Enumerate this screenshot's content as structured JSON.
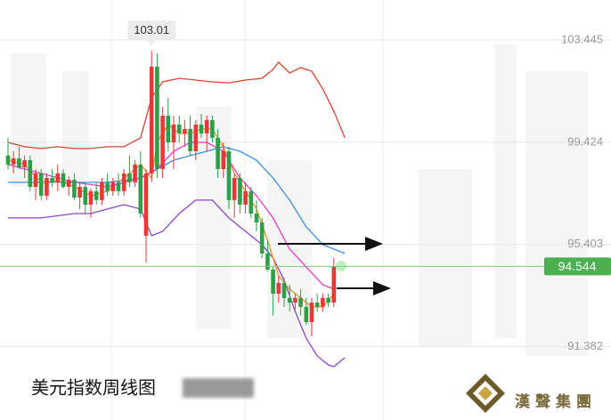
{
  "chart_data": {
    "type": "candlestick",
    "title": "美元指数周线图",
    "ylim": [
      88.5,
      105.02
    ],
    "yticks": [
      91.382,
      95.403,
      99.424,
      103.445
    ],
    "grid": true,
    "up_color": "#e53935",
    "down_color": "#2e9e48",
    "open": [
      98.9,
      98.55,
      98.79,
      98.44,
      98.72,
      97.67,
      98.2,
      97.32,
      98.02,
      97.85,
      98.2,
      97.67,
      97.95,
      97.25,
      97.67,
      96.97,
      97.5,
      97.15,
      97.85,
      97.5,
      97.85,
      97.5,
      98.2,
      97.85,
      98.55,
      95.75,
      98.2,
      102.4,
      98.37,
      100.47,
      99.42,
      100.12,
      99.77,
      99.95,
      99.07,
      100.12,
      99.77,
      100.3,
      99.6,
      98.37,
      99.07,
      97.15,
      98.02,
      96.97,
      97.5,
      96.62,
      96.27,
      95.05,
      94.42,
      93.47,
      93.89,
      93.3,
      93.12,
      93.3,
      92.95,
      92.35,
      93.12,
      92.95,
      93.3,
      93.12
    ],
    "high": [
      99.6,
      99.07,
      99.25,
      98.9,
      98.9,
      98.37,
      98.37,
      98.2,
      98.37,
      98.55,
      98.37,
      98.09,
      98.2,
      97.85,
      97.85,
      97.6,
      97.85,
      98.02,
      98.2,
      98.02,
      98.2,
      98.37,
      98.9,
      98.72,
      99.07,
      98.37,
      103.01,
      102.92,
      100.82,
      101.17,
      100.47,
      100.47,
      100.3,
      100.47,
      100.3,
      100.54,
      100.47,
      100.47,
      99.95,
      99.42,
      99.25,
      98.2,
      98.2,
      97.85,
      97.67,
      97.15,
      96.45,
      95.57,
      94.52,
      94.17,
      94.1,
      93.82,
      93.47,
      93.65,
      93.3,
      93.3,
      93.47,
      93.47,
      93.47,
      94.87
    ],
    "low": [
      98.37,
      98.2,
      98.37,
      98.02,
      97.5,
      97.15,
      97.15,
      97.15,
      97.67,
      97.5,
      97.6,
      97.32,
      97.15,
      96.8,
      96.62,
      96.45,
      96.97,
      96.97,
      97.32,
      97.32,
      97.32,
      97.32,
      97.67,
      97.67,
      96.45,
      94.7,
      97.85,
      98.02,
      98.02,
      99.07,
      98.37,
      99.42,
      99.25,
      98.9,
      98.72,
      99.6,
      99.07,
      99.42,
      98.02,
      98.02,
      96.8,
      96.45,
      96.62,
      96.62,
      96.45,
      95.92,
      94.87,
      94.35,
      92.6,
      93.12,
      92.95,
      92.77,
      92.84,
      92.6,
      92.25,
      91.79,
      92.77,
      92.77,
      92.95,
      92.95
    ],
    "close": [
      98.55,
      98.79,
      98.44,
      98.72,
      97.67,
      98.2,
      97.32,
      98.02,
      97.85,
      98.2,
      97.67,
      97.95,
      97.25,
      97.67,
      96.97,
      97.5,
      97.15,
      97.85,
      97.5,
      97.85,
      97.5,
      98.2,
      97.85,
      98.55,
      96.62,
      98.2,
      102.4,
      98.37,
      100.47,
      99.42,
      100.12,
      99.77,
      99.95,
      99.07,
      100.12,
      99.77,
      100.3,
      99.6,
      98.37,
      99.07,
      97.15,
      98.02,
      96.97,
      97.5,
      96.62,
      96.27,
      95.05,
      94.42,
      93.47,
      93.89,
      93.3,
      93.12,
      93.3,
      92.95,
      92.35,
      93.12,
      92.95,
      93.3,
      93.12,
      94.544
    ],
    "overlays": [
      {
        "color": "#d9432f",
        "x": [
          0,
          3,
          6,
          9,
          12,
          15,
          18,
          21,
          24,
          26,
          28,
          31,
          34,
          37,
          40,
          43,
          46,
          48,
          49,
          51,
          53,
          55,
          57,
          59,
          61
        ],
        "values": [
          99.42,
          99.25,
          99.18,
          99.25,
          99.18,
          99.18,
          99.25,
          99.25,
          99.6,
          101.17,
          101.8,
          101.94,
          101.87,
          101.8,
          101.76,
          101.87,
          101.94,
          102.29,
          102.57,
          102.15,
          102.36,
          102.22,
          101.52,
          100.65,
          99.6
        ]
      },
      {
        "color": "#3b8fe0",
        "x": [
          0,
          6,
          12,
          18,
          21,
          24,
          27,
          30,
          33,
          36,
          39,
          42,
          45,
          48,
          51,
          54,
          57,
          61
        ],
        "values": [
          97.85,
          97.85,
          97.85,
          97.85,
          97.92,
          98.02,
          98.37,
          98.72,
          98.9,
          99.07,
          99.25,
          99.07,
          98.72,
          98.02,
          97.15,
          96.1,
          95.4,
          95.05
        ]
      },
      {
        "color": "#8e44c9",
        "x": [
          0,
          6,
          12,
          15,
          18,
          21,
          24,
          26,
          28,
          31,
          34,
          37,
          40,
          43,
          46,
          48,
          50,
          52,
          54,
          56,
          58,
          59,
          61
        ],
        "values": [
          96.45,
          96.45,
          96.62,
          96.62,
          96.8,
          96.97,
          96.8,
          95.75,
          95.92,
          96.62,
          97.15,
          97.15,
          96.45,
          95.92,
          95.4,
          94.87,
          94.0,
          92.77,
          91.72,
          91.02,
          90.67,
          90.6,
          90.95
        ]
      },
      {
        "color": "#f0932b",
        "x": [
          0,
          3,
          6,
          9,
          12,
          15,
          18,
          21,
          24,
          26,
          27,
          29,
          31,
          33,
          35,
          37,
          39,
          41,
          43,
          45,
          47,
          49,
          51,
          53,
          55,
          57,
          59
        ],
        "values": [
          98.72,
          98.55,
          97.85,
          97.92,
          97.67,
          97.32,
          97.5,
          98.02,
          98.55,
          98.02,
          99.42,
          100.12,
          99.77,
          99.77,
          99.95,
          99.95,
          99.25,
          98.2,
          97.5,
          96.8,
          95.57,
          94.17,
          93.65,
          93.3,
          92.95,
          92.95,
          93.47
        ]
      },
      {
        "color": "#e83ad0",
        "x": [
          0,
          6,
          12,
          18,
          24,
          27,
          30,
          33,
          36,
          39,
          42,
          45,
          48,
          51,
          54,
          57,
          59
        ],
        "values": [
          98.55,
          98.2,
          97.85,
          97.67,
          98.02,
          98.37,
          99.07,
          99.42,
          99.42,
          99.07,
          98.02,
          97.32,
          96.45,
          95.22,
          94.52,
          93.82,
          93.65
        ]
      }
    ]
  },
  "logo": {
    "text": "漢聲集團"
  }
}
